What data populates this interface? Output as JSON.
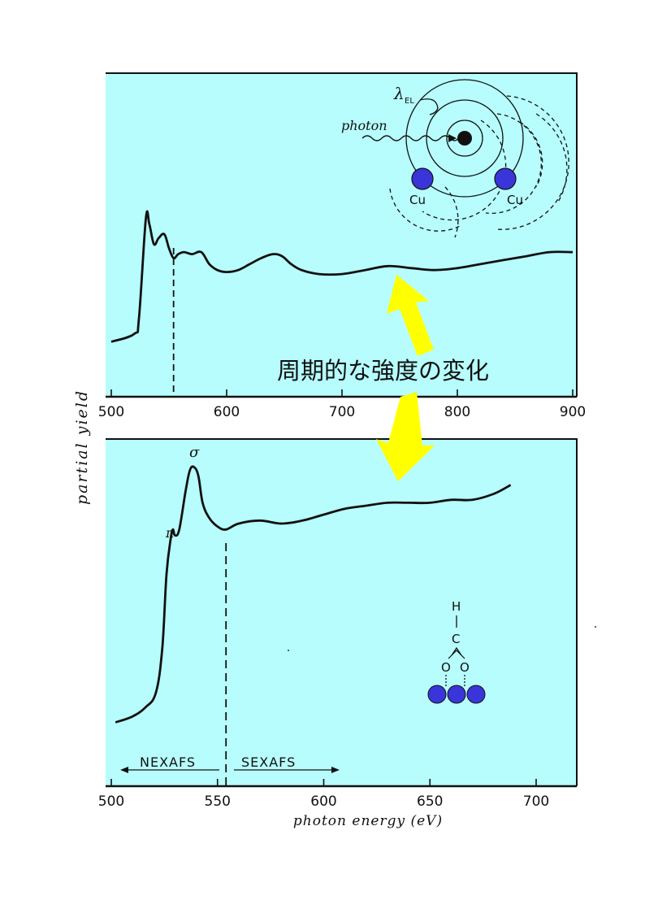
{
  "colors": {
    "panel_bg": "#b7fdfd",
    "curve": "#111111",
    "arrow": "#ffff00",
    "atom": "#3a35d8"
  },
  "annotation": "周期的な強度の変化",
  "shared_ylabel": "partial yield",
  "chart_data": [
    {
      "type": "line",
      "xlim": [
        500,
        900
      ],
      "xticks": [
        "500",
        "600",
        "700",
        "800",
        "900"
      ],
      "xlabel": "",
      "ylabel": "partial yield",
      "ylim": [
        0,
        1
      ],
      "grid": false,
      "dashed_marker_x": 554,
      "inset": {
        "photon_label": "photon",
        "lambda_label": "λ",
        "lambda_sub": "EL",
        "atom_labels": [
          "Cu",
          "Cu"
        ]
      },
      "series": [
        {
          "x": [
            500,
            520,
            524,
            530,
            533,
            537,
            541,
            546,
            550,
            554,
            558,
            563,
            570,
            578,
            585,
            592,
            600,
            610,
            620,
            630,
            640,
            648,
            656,
            665,
            680,
            700,
            720,
            740,
            760,
            780,
            800,
            820,
            840,
            860,
            880,
            900
          ],
          "values": [
            0.08,
            0.12,
            0.2,
            0.7,
            0.67,
            0.57,
            0.6,
            0.62,
            0.55,
            0.5,
            0.52,
            0.53,
            0.52,
            0.53,
            0.47,
            0.44,
            0.43,
            0.44,
            0.47,
            0.5,
            0.52,
            0.51,
            0.47,
            0.44,
            0.42,
            0.42,
            0.44,
            0.46,
            0.45,
            0.44,
            0.45,
            0.47,
            0.49,
            0.51,
            0.53,
            0.53
          ]
        }
      ]
    },
    {
      "type": "line",
      "xlim": [
        500,
        720
      ],
      "xticks": [
        "500",
        "550",
        "600",
        "650",
        "700"
      ],
      "xlabel": "photon energy (eV)",
      "ylabel": "partial yield",
      "ylim": [
        0,
        1
      ],
      "grid": false,
      "dashed_marker_x": 554,
      "peak_labels": [
        "π",
        "σ"
      ],
      "regions": [
        "NEXAFS",
        "SEXAFS"
      ],
      "inset": {
        "molecule_labels": [
          "H",
          "C",
          "O",
          "O"
        ]
      },
      "series": [
        {
          "x": [
            502,
            510,
            516,
            521,
            524,
            526,
            528,
            529,
            530,
            532,
            535,
            537,
            539,
            541,
            543,
            546,
            550,
            554,
            560,
            570,
            580,
            590,
            600,
            610,
            620,
            630,
            640,
            650,
            660,
            670,
            680,
            688
          ],
          "values": [
            0.1,
            0.12,
            0.15,
            0.2,
            0.35,
            0.6,
            0.72,
            0.75,
            0.73,
            0.75,
            0.88,
            0.95,
            0.96,
            0.93,
            0.84,
            0.79,
            0.76,
            0.75,
            0.77,
            0.78,
            0.77,
            0.78,
            0.8,
            0.82,
            0.83,
            0.84,
            0.84,
            0.84,
            0.85,
            0.85,
            0.87,
            0.9
          ]
        }
      ]
    }
  ]
}
